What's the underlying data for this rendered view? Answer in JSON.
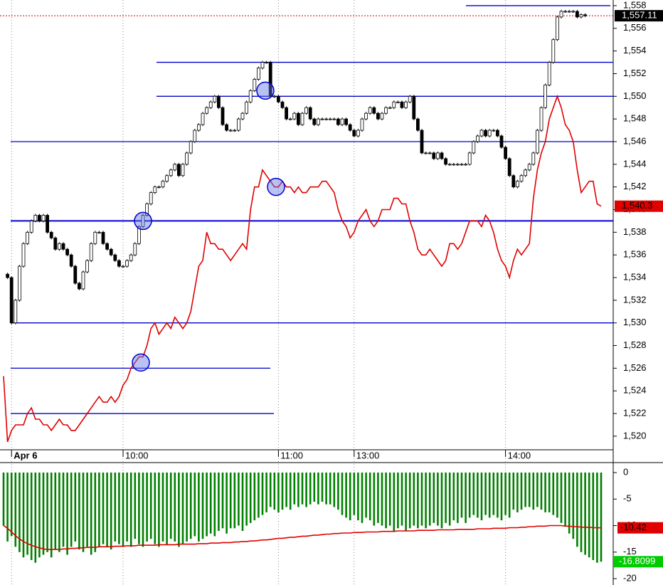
{
  "chart_data": [
    {
      "type": "candlestick",
      "close": [
        1534.3,
        1534,
        1530,
        1532,
        1535,
        1537,
        1538,
        1539,
        1539.5,
        1539,
        1539.5,
        1538,
        1537.5,
        1536.5,
        1537,
        1536.5,
        1536,
        1535,
        1533.5,
        1533,
        1534.5,
        1535.5,
        1537,
        1538,
        1538,
        1537,
        1536.5,
        1536,
        1535.5,
        1535,
        1535,
        1535.5,
        1536,
        1537,
        1538.5,
        1539.5,
        1540.5,
        1541.5,
        1542,
        1542,
        1542.5,
        1543,
        1543.5,
        1544,
        1543,
        1544,
        1545,
        1546,
        1547,
        1547.5,
        1548.5,
        1549,
        1549.5,
        1550,
        1549,
        1547.5,
        1547,
        1547,
        1547,
        1548,
        1548.5,
        1549.5,
        1550.5,
        1551.5,
        1552.5,
        1553,
        1553,
        1550,
        1550,
        1549.5,
        1549,
        1548,
        1548,
        1548.5,
        1547.5,
        1548.5,
        1549,
        1548,
        1547.5,
        1548,
        1548,
        1548,
        1548,
        1548,
        1547.5,
        1548,
        1547.5,
        1547,
        1546.5,
        1547,
        1548,
        1548.5,
        1549,
        1548.5,
        1548,
        1548.5,
        1549,
        1549,
        1549.5,
        1549.5,
        1549,
        1549.5,
        1550,
        1548,
        1547,
        1545,
        1545,
        1545,
        1544.5,
        1545,
        1544.5,
        1544,
        1544,
        1544,
        1544,
        1544,
        1544,
        1545,
        1546,
        1546.5,
        1547,
        1546.5,
        1547,
        1547,
        1546.5,
        1545.5,
        1544.5,
        1543,
        1542,
        1542.5,
        1543,
        1543.5,
        1544,
        1545,
        1547,
        1549,
        1551,
        1553,
        1555,
        1557,
        1557.5,
        1557.5,
        1557.5,
        1557.5,
        1557,
        1557.2,
        1557.11
      ],
      "up_color": "#ffffff",
      "down_color": "#000000",
      "line": {
        "color": "#e00000",
        "values": [
          1525.3,
          1519.5,
          1520.5,
          1521,
          1521,
          1521,
          1522,
          1522.5,
          1521.5,
          1521.5,
          1521,
          1521,
          1520.5,
          1521,
          1521.5,
          1521,
          1521,
          1520.5,
          1520.5,
          1521,
          1521.5,
          1522,
          1522.5,
          1523,
          1523.5,
          1523,
          1523,
          1523.5,
          1523,
          1523.5,
          1524.5,
          1525,
          1526,
          1526.5,
          1527,
          1527,
          1528,
          1529.5,
          1530,
          1529,
          1529.5,
          1530,
          1529.5,
          1530.5,
          1530,
          1529.5,
          1530,
          1531,
          1533,
          1535,
          1535.5,
          1538,
          1537,
          1537,
          1536.5,
          1536.5,
          1536,
          1535.5,
          1536,
          1536.5,
          1537,
          1536.5,
          1540,
          1542,
          1542,
          1543.5,
          1543,
          1542.5,
          1542,
          1542,
          1542.5,
          1542,
          1542,
          1541.5,
          1542,
          1541.5,
          1541.5,
          1542,
          1542,
          1542,
          1542.5,
          1542.5,
          1542,
          1541.5,
          1540,
          1539,
          1538.5,
          1537.5,
          1538,
          1539,
          1539.5,
          1540,
          1539,
          1538.5,
          1539,
          1540,
          1540,
          1540,
          1541,
          1541,
          1540.5,
          1540.5,
          1539,
          1538,
          1536.5,
          1536,
          1536,
          1536.5,
          1536,
          1535.5,
          1535,
          1535.5,
          1537,
          1537,
          1536.5,
          1537,
          1538,
          1539,
          1539,
          1539,
          1538.5,
          1539.5,
          1539,
          1538,
          1536.5,
          1535.5,
          1535,
          1534,
          1535.5,
          1536.5,
          1536,
          1536.5,
          1537,
          1541,
          1543.5,
          1545,
          1546,
          1548,
          1549,
          1550,
          1549,
          1547.5,
          1547,
          1546,
          1543.5,
          1541.5,
          1542,
          1542.5,
          1542.5,
          1540.5,
          1540.3
        ]
      },
      "levels": [
        1558,
        1553,
        1550,
        1546,
        1539,
        1530,
        1526,
        1522
      ],
      "level_color": "#0000cc",
      "markers": [
        1539,
        1550.5,
        1542,
        1526.5
      ],
      "last_label": "1,557.11",
      "line_label": "1,540.3",
      "ylim": [
        1518.8,
        1558.5
      ],
      "yticks": [
        {
          "value": 1520,
          "label": "1,520"
        },
        {
          "value": 1522,
          "label": "1,522"
        },
        {
          "value": 1524,
          "label": "1,524"
        },
        {
          "value": 1526,
          "label": "1,526"
        },
        {
          "value": 1528,
          "label": "1,528"
        },
        {
          "value": 1530,
          "label": "1,530"
        },
        {
          "value": 1532,
          "label": "1,532"
        },
        {
          "value": 1534,
          "label": "1,534"
        },
        {
          "value": 1536,
          "label": "1,536"
        },
        {
          "value": 1538,
          "label": "1,538"
        },
        {
          "value": 1540,
          "label": "1,540"
        },
        {
          "value": 1542,
          "label": "1,542"
        },
        {
          "value": 1544,
          "label": "1,544"
        },
        {
          "value": 1546,
          "label": "1,546"
        },
        {
          "value": 1548,
          "label": "1,548"
        },
        {
          "value": 1550,
          "label": "1,550"
        },
        {
          "value": 1552,
          "label": "1,552"
        },
        {
          "value": 1554,
          "label": "1,554"
        },
        {
          "value": 1556,
          "label": "1,556"
        },
        {
          "value": 1558,
          "label": "1,558"
        }
      ],
      "xlim": [
        0,
        150
      ],
      "xticks": [
        {
          "value": 2,
          "label": "Apr 6"
        },
        {
          "value": 30,
          "label": "10:00"
        },
        {
          "value": 69,
          "label": "11:00"
        },
        {
          "value": 88,
          "label": "13:00"
        },
        {
          "value": 126,
          "label": "14:00"
        }
      ]
    },
    {
      "type": "bar",
      "color": "#008000",
      "values": [
        -10,
        -13,
        -12,
        -14,
        -15,
        -16,
        -15.5,
        -16.5,
        -17,
        -16,
        -15.5,
        -15,
        -16,
        -14.5,
        -15,
        -14,
        -15.5,
        -14,
        -13,
        -14.5,
        -15,
        -14,
        -15.5,
        -15,
        -14,
        -13.5,
        -14,
        -14.5,
        -13,
        -13.5,
        -14,
        -13,
        -14,
        -12.5,
        -13.5,
        -14,
        -13,
        -12.5,
        -13.5,
        -14,
        -13,
        -13.5,
        -12.5,
        -13,
        -14,
        -13.5,
        -13,
        -12.5,
        -12,
        -13,
        -12.5,
        -12,
        -11.5,
        -12,
        -11,
        -10.5,
        -11.5,
        -10.5,
        -10.5,
        -10,
        -11,
        -10,
        -9.5,
        -9,
        -8.5,
        -8,
        -7.5,
        -6.5,
        -7,
        -7.5,
        -7,
        -6.5,
        -7,
        -6,
        -6.5,
        -6,
        -6.5,
        -6,
        -5.5,
        -6,
        -5.5,
        -6,
        -6,
        -6.5,
        -7,
        -8,
        -8.5,
        -9,
        -8,
        -9,
        -9.5,
        -8.5,
        -9,
        -10,
        -9.5,
        -10,
        -10.5,
        -10,
        -11,
        -10.5,
        -10,
        -11,
        -10.5,
        -10,
        -10.5,
        -10,
        -10.5,
        -10,
        -9.5,
        -10,
        -10.5,
        -9.5,
        -10,
        -9,
        -9.5,
        -8.5,
        -9.5,
        -8.5,
        -8,
        -8.5,
        -9,
        -8,
        -8.5,
        -8,
        -8.5,
        -9,
        -8,
        -8.5,
        -7,
        -7.5,
        -7,
        -6.5,
        -6.5,
        -7,
        -6.5,
        -7,
        -7.5,
        -7.5,
        -8,
        -8.5,
        -9.5,
        -10,
        -11.5,
        -12.5,
        -14,
        -15,
        -15.5,
        -16,
        -16.5,
        -17,
        -16.8099
      ],
      "line": {
        "color": "#e00000",
        "values": [
          -10,
          -10.5,
          -11.2,
          -11.9,
          -12.5,
          -13,
          -13.4,
          -13.7,
          -14,
          -14.2,
          -14.4,
          -14.5,
          -14.5,
          -14.5,
          -14.5,
          -14.4,
          -14.4,
          -14.3,
          -14.3,
          -14.2,
          -14.2,
          -14.1,
          -14.1,
          -14.1,
          -14,
          -14,
          -14,
          -14,
          -13.9,
          -13.9,
          -13.9,
          -13.8,
          -13.8,
          -13.8,
          -13.7,
          -13.7,
          -13.7,
          -13.7,
          -13.7,
          -13.6,
          -13.6,
          -13.6,
          -13.6,
          -13.6,
          -13.5,
          -13.5,
          -13.5,
          -13.5,
          -13.5,
          -13.4,
          -13.4,
          -13.4,
          -13.3,
          -13.3,
          -13.3,
          -13.2,
          -13.2,
          -13.2,
          -13.1,
          -13.1,
          -13,
          -13,
          -12.9,
          -12.9,
          -12.8,
          -12.7,
          -12.7,
          -12.6,
          -12.5,
          -12.4,
          -12.4,
          -12.3,
          -12.2,
          -12.2,
          -12.1,
          -12,
          -12,
          -11.9,
          -11.8,
          -11.8,
          -11.7,
          -11.6,
          -11.6,
          -11.5,
          -11.5,
          -11.4,
          -11.4,
          -11.4,
          -11.3,
          -11.3,
          -11.3,
          -11.2,
          -11.2,
          -11.2,
          -11.2,
          -11.1,
          -11.1,
          -11.1,
          -11.1,
          -11,
          -11,
          -11,
          -11,
          -11,
          -10.9,
          -10.9,
          -10.9,
          -10.9,
          -10.9,
          -10.8,
          -10.8,
          -10.8,
          -10.8,
          -10.8,
          -10.7,
          -10.7,
          -10.7,
          -10.7,
          -10.7,
          -10.6,
          -10.6,
          -10.6,
          -10.6,
          -10.5,
          -10.5,
          -10.5,
          -10.5,
          -10.4,
          -10.4,
          -10.4,
          -10.3,
          -10.3,
          -10.2,
          -10.2,
          -10.1,
          -10.1,
          -10.1,
          -10,
          -10,
          -10,
          -10,
          -10.1,
          -10.1,
          -10.2,
          -10.2,
          -10.3,
          -10.3,
          -10.3,
          -10.4,
          -10.4,
          -10.42
        ]
      },
      "value_label": "-16.8099",
      "line_label": "-10.42",
      "ylim": [
        -21.2,
        1.88
      ],
      "yticks": [
        0,
        -5,
        -10,
        -15,
        -20
      ]
    }
  ]
}
